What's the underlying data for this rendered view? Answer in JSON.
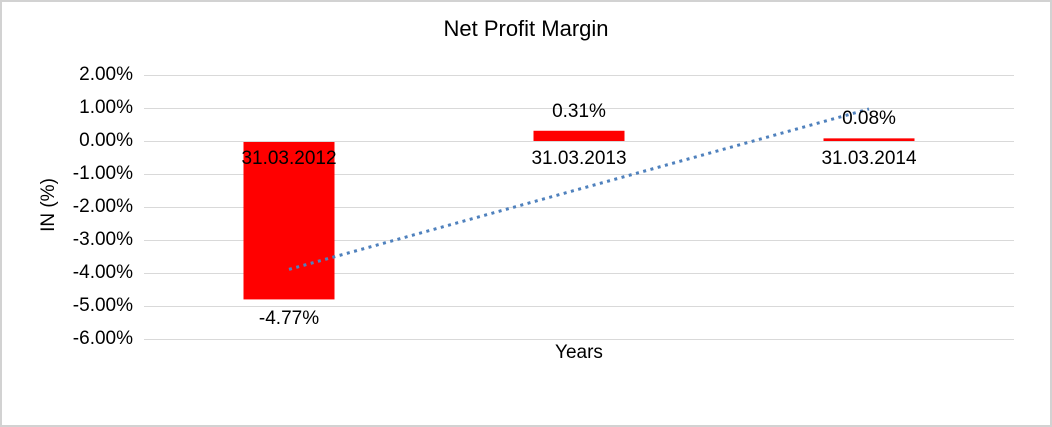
{
  "chart_data": {
    "type": "bar",
    "title": "Net Profit Margin",
    "xlabel": "Years",
    "ylabel": "IN (%)",
    "categories": [
      "31.03.2012",
      "31.03.2013",
      "31.03.2014"
    ],
    "values": [
      -4.77,
      0.31,
      0.08
    ],
    "data_labels": [
      "-4.77%",
      "0.31%",
      "0.08%"
    ],
    "y_ticks": [
      2,
      1,
      0,
      -1,
      -2,
      -3,
      -4,
      -5,
      -6
    ],
    "y_tick_labels": [
      "2.00%",
      "1.00%",
      "0.00%",
      "-1.00%",
      "-2.00%",
      "-3.00%",
      "-4.00%",
      "-5.00%",
      "-6.00%"
    ],
    "ylim": [
      -6,
      2
    ],
    "grid": true,
    "legend": "none",
    "colors": {
      "bar": "#FF0000",
      "trendline": "#4F81BD",
      "gridline": "#D9D9D9",
      "text": "#000000",
      "frame_border": "#D2D2D2"
    },
    "trendline": {
      "style": "dotted",
      "shape": "linear",
      "color": "#4F81BD",
      "start_category_index": 0,
      "start_value": -3.89,
      "end_category_index": 2,
      "end_value": 0.97
    }
  }
}
